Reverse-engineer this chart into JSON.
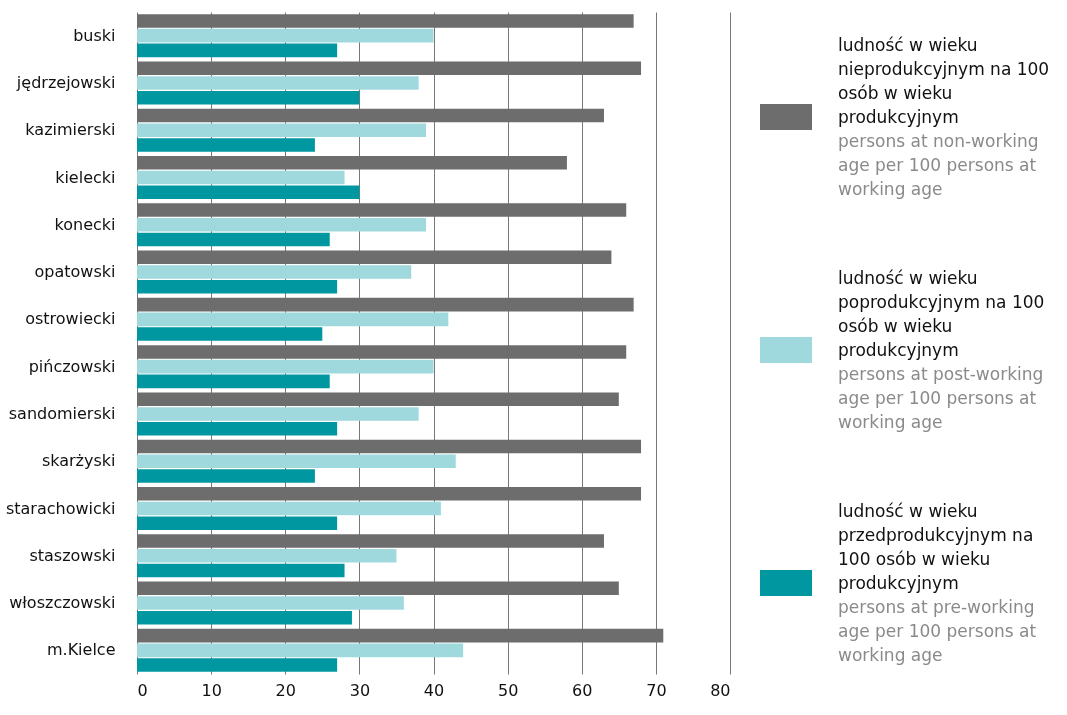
{
  "chart_data": {
    "type": "bar",
    "orientation": "horizontal",
    "categories": [
      "buski",
      "jędrzejowski",
      "kazimierski",
      "kielecki",
      "konecki",
      "opatowski",
      "ostrowiecki",
      "pińczowski",
      "sandomierski",
      "skarżyski",
      "starachowicki",
      "staszowski",
      "włoszczowski",
      "m.Kielce"
    ],
    "series": [
      {
        "name": "ludność w wieku nieprodukcyjnym na 100 osób w wieku produkcyjnym\npersons at non-working age per 100 persons at working age",
        "color": "#6d6d6d",
        "values": [
          67,
          68,
          63,
          58,
          66,
          64,
          67,
          66,
          65,
          68,
          68,
          63,
          65,
          71
        ]
      },
      {
        "name": "ludność w wieku poprodukcyjnym na 100 osób w wieku produkcyjnym\npersons at post-working age per 100 persons at working age",
        "color": "#9fd9de",
        "values": [
          40,
          38,
          39,
          28,
          39,
          37,
          42,
          40,
          38,
          43,
          41,
          35,
          36,
          44
        ]
      },
      {
        "name": "ludność w wieku przedprodukcyjnym na 100 osób w wieku produkcyjnym\npersons at pre-working age per 100 persons at working age",
        "color": "#0097a0",
        "values": [
          27,
          30,
          24,
          30,
          26,
          27,
          25,
          26,
          27,
          24,
          27,
          28,
          29,
          27
        ]
      }
    ],
    "xlim": [
      0,
      80
    ],
    "xticks": [
      0,
      10,
      20,
      30,
      40,
      50,
      60,
      70,
      80
    ],
    "grid": "x",
    "legend": "right"
  }
}
